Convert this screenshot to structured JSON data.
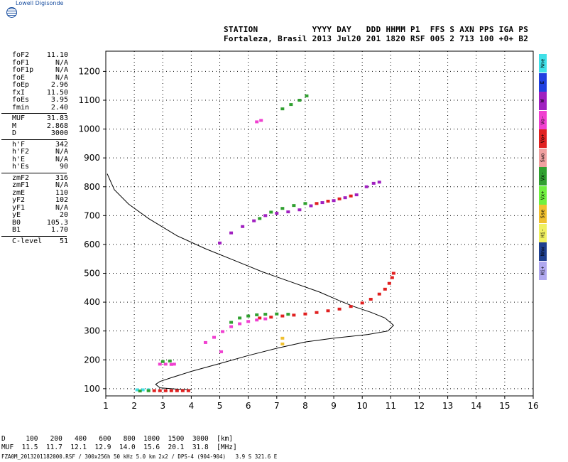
{
  "brand": {
    "name": "Lowell Digisonde",
    "icon": "globe-icon"
  },
  "header": {
    "line1": "STATION           YYYY DAY   DDD HHMM P1  FFS S AXN PPS IGA PS",
    "line2": "Fortaleza, Brasil 2013 Jul20 201 1820 RSF 005 2 713 100 +0+ B2"
  },
  "params": {
    "group1": [
      {
        "label": "foF2",
        "value": "11.10"
      },
      {
        "label": "foF1",
        "value": "N/A"
      },
      {
        "label": "foF1p",
        "value": "N/A"
      },
      {
        "label": "foE",
        "value": "N/A"
      },
      {
        "label": "foEp",
        "value": "2.96"
      },
      {
        "label": "fxI",
        "value": "11.50"
      },
      {
        "label": "foEs",
        "value": "3.95"
      },
      {
        "label": "fmin",
        "value": "2.40"
      }
    ],
    "group2": [
      {
        "label": "MUF",
        "value": "31.83"
      },
      {
        "label": "M",
        "value": "2.868"
      },
      {
        "label": "D",
        "value": "3000"
      }
    ],
    "group3": [
      {
        "label": "h'F",
        "value": "342"
      },
      {
        "label": "h'F2",
        "value": "N/A"
      },
      {
        "label": "h'E",
        "value": "N/A"
      },
      {
        "label": "h'Es",
        "value": "90"
      }
    ],
    "group4": [
      {
        "label": "zmF2",
        "value": "316"
      },
      {
        "label": "zmF1",
        "value": "N/A"
      },
      {
        "label": "zmE",
        "value": "110"
      },
      {
        "label": "yF2",
        "value": "102"
      },
      {
        "label": "yF1",
        "value": "N/A"
      },
      {
        "label": "yE",
        "value": "20"
      },
      {
        "label": "B0",
        "value": "105.3"
      },
      {
        "label": "B1",
        "value": "1.70"
      }
    ],
    "group5": [
      {
        "label": "C-level",
        "value": "51"
      }
    ]
  },
  "legend": [
    {
      "label": "Nne",
      "color": "#40e0e8"
    },
    {
      "label": "E",
      "color": "#2040e0"
    },
    {
      "label": "W",
      "color": "#a020c0"
    },
    {
      "label": "Vo-",
      "color": "#f040d0"
    },
    {
      "label": "Vo+",
      "color": "#e02020"
    },
    {
      "label": "Swo",
      "color": "#f0a0a0"
    },
    {
      "label": "Vx-",
      "color": "#30a030"
    },
    {
      "label": "Vx+",
      "color": "#70f040"
    },
    {
      "label": "Sse",
      "color": "#f0c030"
    },
    {
      "label": "Hi-",
      "color": "#f0f060"
    },
    {
      "label": "Nnw",
      "color": "#204090"
    },
    {
      "label": "Hi+",
      "color": "#b0a8f0"
    }
  ],
  "muf_table": {
    "d_row": "D     100   200   400   600   800  1000  1500  3000  [km]",
    "muf_row": "MUF  11.5  11.7  12.1  12.9  14.0  15.6  20.1  31.8  [MHz]"
  },
  "footer": "FZA0M_2013201182000.RSF / 300x256h 50 kHz 5.0 km 2x2 / DPS-4 (904-904)   3.9 S 321.6 E",
  "chart_data": {
    "type": "scatter",
    "xlim": [
      1,
      16
    ],
    "ylim": [
      75,
      1270
    ],
    "xticks": [
      "1",
      "2",
      "3",
      "4",
      "5",
      "6",
      "7",
      "8",
      "9",
      "10",
      "11",
      "12",
      "13",
      "14",
      "15",
      "16"
    ],
    "yticks": [
      "100",
      "200",
      "300",
      "400",
      "500",
      "600",
      "700",
      "800",
      "900",
      "1000",
      "1100",
      "1200"
    ],
    "grid": true,
    "profile": {
      "color": "#000000",
      "points": [
        [
          1.05,
          845
        ],
        [
          1.3,
          790
        ],
        [
          1.8,
          740
        ],
        [
          2.5,
          690
        ],
        [
          3.5,
          630
        ],
        [
          4.5,
          585
        ],
        [
          5.5,
          545
        ],
        [
          6.5,
          505
        ],
        [
          7.5,
          470
        ],
        [
          8.5,
          435
        ],
        [
          9.2,
          405
        ],
        [
          9.7,
          385
        ],
        [
          10.3,
          365
        ],
        [
          10.8,
          345
        ],
        [
          11.1,
          320
        ],
        [
          10.9,
          300
        ],
        [
          10.2,
          288
        ],
        [
          9.0,
          275
        ],
        [
          8.0,
          262
        ],
        [
          7.0,
          240
        ],
        [
          6.0,
          215
        ],
        [
          5.0,
          187
        ],
        [
          4.0,
          160
        ],
        [
          3.3,
          138
        ],
        [
          2.9,
          125
        ],
        [
          2.75,
          115
        ],
        [
          2.9,
          103
        ],
        [
          3.6,
          98
        ],
        [
          4.0,
          97
        ]
      ]
    },
    "series": [
      {
        "trace": "es",
        "color": "#e02020",
        "points": [
          [
            2.7,
            93
          ],
          [
            2.9,
            93
          ],
          [
            3.1,
            93
          ],
          [
            3.3,
            93
          ],
          [
            3.5,
            93
          ],
          [
            3.7,
            93
          ],
          [
            3.9,
            93
          ]
        ]
      },
      {
        "trace": "es",
        "color": "#40e0e8",
        "points": [
          [
            2.1,
            96
          ],
          [
            2.3,
            96
          ],
          [
            2.5,
            96
          ]
        ]
      },
      {
        "trace": "es",
        "color": "#30a030",
        "points": [
          [
            2.2,
            92
          ],
          [
            2.5,
            93
          ]
        ]
      },
      {
        "trace": "es-upper",
        "color": "#f040d0",
        "points": [
          [
            2.9,
            185
          ],
          [
            3.1,
            185
          ],
          [
            3.3,
            184
          ],
          [
            3.4,
            185
          ]
        ]
      },
      {
        "trace": "es-upper",
        "color": "#30a030",
        "points": [
          [
            3.0,
            194
          ],
          [
            3.25,
            196
          ]
        ]
      },
      {
        "trace": "f-ordinary",
        "color": "#e02020",
        "points": [
          [
            6.4,
            345
          ],
          [
            6.8,
            348
          ],
          [
            7.2,
            352
          ],
          [
            7.6,
            355
          ],
          [
            8.0,
            359
          ],
          [
            8.4,
            364
          ],
          [
            8.8,
            370
          ],
          [
            9.2,
            376
          ],
          [
            9.6,
            385
          ],
          [
            10.0,
            397
          ],
          [
            10.3,
            410
          ],
          [
            10.6,
            428
          ],
          [
            10.8,
            445
          ],
          [
            10.95,
            465
          ],
          [
            11.05,
            485
          ],
          [
            11.1,
            500
          ]
        ]
      },
      {
        "trace": "f-ordinary",
        "color": "#f040d0",
        "points": [
          [
            4.5,
            260
          ],
          [
            4.8,
            278
          ],
          [
            5.1,
            298
          ],
          [
            5.4,
            315
          ],
          [
            5.7,
            325
          ],
          [
            6.0,
            333
          ],
          [
            6.3,
            338
          ],
          [
            6.6,
            342
          ]
        ]
      },
      {
        "trace": "f-extra",
        "color": "#30a030",
        "points": [
          [
            5.4,
            330
          ],
          [
            5.7,
            345
          ],
          [
            6.0,
            352
          ],
          [
            6.3,
            356
          ],
          [
            6.6,
            358
          ],
          [
            7.0,
            359
          ],
          [
            7.4,
            358
          ]
        ]
      },
      {
        "trace": "multihop",
        "color": "#a020c0",
        "points": [
          [
            5.0,
            605
          ],
          [
            5.4,
            640
          ],
          [
            5.8,
            662
          ],
          [
            6.2,
            682
          ],
          [
            6.6,
            700
          ],
          [
            7.0,
            708
          ],
          [
            7.4,
            713
          ],
          [
            7.8,
            720
          ],
          [
            8.2,
            734
          ],
          [
            8.6,
            745
          ],
          [
            9.0,
            752
          ],
          [
            9.4,
            762
          ],
          [
            9.8,
            772
          ]
        ]
      },
      {
        "trace": "multihop",
        "color": "#30a030",
        "points": [
          [
            6.4,
            690
          ],
          [
            6.8,
            712
          ],
          [
            7.2,
            725
          ],
          [
            7.6,
            735
          ],
          [
            8.0,
            742
          ]
        ]
      },
      {
        "trace": "multihop",
        "color": "#e02020",
        "points": [
          [
            8.4,
            742
          ],
          [
            8.8,
            750
          ],
          [
            9.2,
            758
          ],
          [
            9.6,
            768
          ]
        ]
      },
      {
        "trace": "multihop-upper",
        "color": "#a020c0",
        "points": [
          [
            10.15,
            800
          ],
          [
            10.4,
            812
          ],
          [
            10.6,
            816
          ]
        ]
      },
      {
        "trace": "top",
        "color": "#30a030",
        "points": [
          [
            7.2,
            1070
          ],
          [
            7.5,
            1085
          ],
          [
            7.8,
            1100
          ],
          [
            8.05,
            1115
          ]
        ]
      },
      {
        "trace": "top",
        "color": "#f040d0",
        "points": [
          [
            6.3,
            1025
          ],
          [
            6.45,
            1030
          ]
        ]
      },
      {
        "trace": "stray",
        "color": "#f0c030",
        "points": [
          [
            7.2,
            275
          ],
          [
            7.2,
            255
          ]
        ]
      },
      {
        "trace": "stray",
        "color": "#f040d0",
        "points": [
          [
            5.05,
            228
          ]
        ]
      }
    ]
  }
}
